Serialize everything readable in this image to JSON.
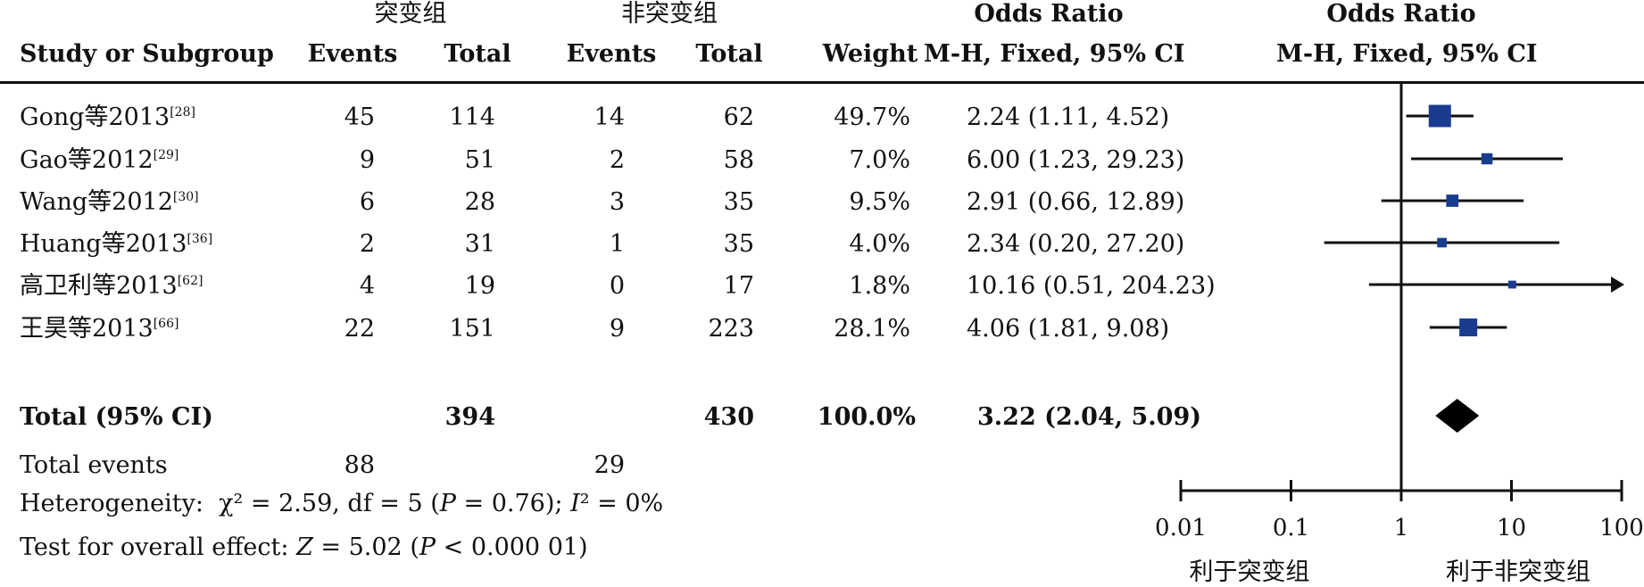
{
  "header": {
    "group1": "突变组",
    "group2": "非突变组",
    "or_title": "Odds Ratio",
    "or_method": "M-H, Fixed, 95% CI",
    "plot_title": "Odds Ratio",
    "plot_method": "M-H, Fixed, 95% CI",
    "col_study": "Study or Subgroup",
    "col_events1": "Events",
    "col_total1": "Total",
    "col_events2": "Events",
    "col_total2": "Total",
    "col_weight": "Weight"
  },
  "studies": [
    {
      "name": "Gong等2013",
      "ref": "[28]",
      "e1": "45",
      "t1": "114",
      "e2": "14",
      "t2": "62",
      "weight": "49.7%",
      "or_text": "2.24 (1.11, 4.52)"
    },
    {
      "name": "Gao等2012",
      "ref": "[29]",
      "e1": "9",
      "t1": "51",
      "e2": "2",
      "t2": "58",
      "weight": "7.0%",
      "or_text": "6.00 (1.23, 29.23)"
    },
    {
      "name": "Wang等2012",
      "ref": "[30]",
      "e1": "6",
      "t1": "28",
      "e2": "3",
      "t2": "35",
      "weight": "9.5%",
      "or_text": "2.91 (0.66, 12.89)"
    },
    {
      "name": "Huang等2013",
      "ref": "[36]",
      "e1": "2",
      "t1": "31",
      "e2": "1",
      "t2": "35",
      "weight": "4.0%",
      "or_text": "2.34 (0.20, 27.20)"
    },
    {
      "name": "高卫利等2013",
      "ref": "[62]",
      "e1": "4",
      "t1": "19",
      "e2": "0",
      "t2": "17",
      "weight": "1.8%",
      "or_text": "10.16 (0.51, 204.23)"
    },
    {
      "name": "王昊等2013",
      "ref": "[66]",
      "e1": "22",
      "t1": "151",
      "e2": "9",
      "t2": "223",
      "weight": "28.1%",
      "or_text": "4.06 (1.81, 9.08)"
    }
  ],
  "total": {
    "label": "Total (95% CI)",
    "t1": "394",
    "t2": "430",
    "weight": "100.0%",
    "or_text": "3.22 (2.04, 5.09)"
  },
  "total_events": {
    "label": "Total events",
    "e1": "88",
    "e2": "29"
  },
  "heterogeneity": {
    "label": "Heterogeneity:",
    "chi": "χ² = 2.59, df = 5 (",
    "p": "P",
    "p_val": " = 0.76); ",
    "i": "I",
    "i_val": "² = 0%"
  },
  "overall": {
    "label": "Test for overall effect: ",
    "z": "Z",
    "z_val": " = 5.02 (",
    "p": "P",
    "p_val": " < 0.000 01)"
  },
  "axis": {
    "favours_left": "利于突变组",
    "favours_right": "利于非突变组"
  },
  "chart_data": {
    "type": "forest",
    "scale": "log",
    "xlim": [
      0.01,
      100
    ],
    "ticks": [
      0.01,
      0.1,
      1,
      10,
      100
    ],
    "tick_labels": [
      "0.01",
      "0.1",
      "1",
      "10",
      "100"
    ],
    "null_line": 1,
    "points": [
      {
        "or": 2.24,
        "lo": 1.11,
        "hi": 4.52,
        "weight": 49.7
      },
      {
        "or": 6.0,
        "lo": 1.23,
        "hi": 29.23,
        "weight": 7.0
      },
      {
        "or": 2.91,
        "lo": 0.66,
        "hi": 12.89,
        "weight": 9.5
      },
      {
        "or": 2.34,
        "lo": 0.2,
        "hi": 27.2,
        "weight": 4.0
      },
      {
        "or": 10.16,
        "lo": 0.51,
        "hi": 204.23,
        "weight": 1.8
      },
      {
        "or": 4.06,
        "lo": 1.81,
        "hi": 9.08,
        "weight": 28.1
      }
    ],
    "pooled": {
      "or": 3.22,
      "lo": 2.04,
      "hi": 5.09
    },
    "colors": {
      "square": "#1a3c8f",
      "line": "#111111",
      "diamond": "#000000"
    }
  }
}
